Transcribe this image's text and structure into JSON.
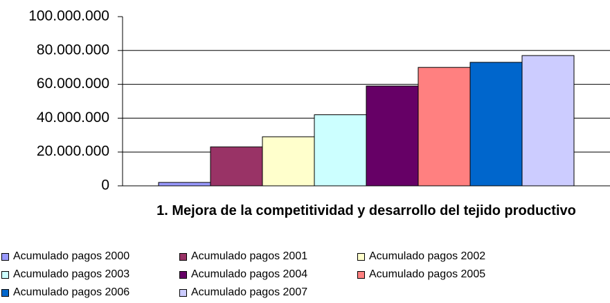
{
  "chart_data": {
    "type": "bar",
    "categories": [
      "1. Mejora de la competitividad y desarrollo del tejido productivo"
    ],
    "series": [
      {
        "name": "Acumulado pagos 2000",
        "color": "#9999ff",
        "values": [
          2000000
        ]
      },
      {
        "name": "Acumulado pagos 2001",
        "color": "#993366",
        "values": [
          23000000
        ]
      },
      {
        "name": "Acumulado pagos 2002",
        "color": "#ffffcc",
        "values": [
          29000000
        ]
      },
      {
        "name": "Acumulado pagos 2003",
        "color": "#ccffff",
        "values": [
          42000000
        ]
      },
      {
        "name": "Acumulado pagos 2004",
        "color": "#660066",
        "values": [
          59000000
        ]
      },
      {
        "name": "Acumulado pagos 2005",
        "color": "#ff8080",
        "values": [
          70000000
        ]
      },
      {
        "name": "Acumulado pagos 2006",
        "color": "#0066cc",
        "values": [
          73000000
        ]
      },
      {
        "name": "Acumulado pagos 2007",
        "color": "#ccccff",
        "values": [
          77000000
        ]
      }
    ],
    "ylim": [
      0,
      100000000
    ],
    "yticks": [
      0,
      {
        "value": 20000000,
        "label": "20.000.000"
      },
      {
        "value": 40000000,
        "label": "40.000.000"
      },
      {
        "value": 60000000,
        "label": "60.000.000"
      },
      {
        "value": 80000000,
        "label": "80.000.000"
      },
      {
        "value": 100000000,
        "label": "100.000.000"
      }
    ],
    "grid": true,
    "legend": "bottom"
  }
}
